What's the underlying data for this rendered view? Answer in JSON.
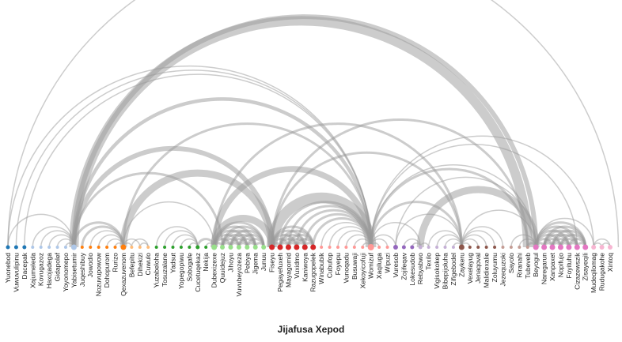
{
  "title": "Jijafusa Xepod",
  "colors": {
    "arc": "#999999",
    "label": "#222222",
    "groups": [
      "#1f77b4",
      "#aec7e8",
      "#ff7f0e",
      "#ffbb78",
      "#2ca02c",
      "#98df8a",
      "#d62728",
      "#ff9896",
      "#9467bd",
      "#c5b0d5",
      "#8c564b",
      "#c49c94",
      "#e377c2",
      "#f7b6d2"
    ]
  },
  "nodes": [
    {
      "label": "Yuonebod",
      "group": 0,
      "size": 2.5
    },
    {
      "label": "Vuwuvulipinu",
      "group": 0,
      "size": 2.5
    },
    {
      "label": "Dacepak",
      "group": 0,
      "size": 2.5
    },
    {
      "label": "Xajumeleda",
      "group": 1,
      "size": 2
    },
    {
      "label": "Kovugazoz",
      "group": 1,
      "size": 2
    },
    {
      "label": "Haxojadega",
      "group": 1,
      "size": 2
    },
    {
      "label": "Gidapolef",
      "group": 1,
      "size": 2
    },
    {
      "label": "Yoyonomepo",
      "group": 1,
      "size": 2
    },
    {
      "label": "Yabisetumir",
      "group": 1,
      "size": 3.5
    },
    {
      "label": "Juqeshibuy",
      "group": 2,
      "size": 2
    },
    {
      "label": "Jowodio",
      "group": 2,
      "size": 2
    },
    {
      "label": "Nozuvupowow",
      "group": 2,
      "size": 2
    },
    {
      "label": "Dohopurom",
      "group": 2,
      "size": 2
    },
    {
      "label": "Rurizo",
      "group": 2,
      "size": 2
    },
    {
      "label": "Qexazuvenom",
      "group": 2,
      "size": 3.5
    },
    {
      "label": "Befepitu",
      "group": 3,
      "size": 2
    },
    {
      "label": "Dihekizi",
      "group": 3,
      "size": 2
    },
    {
      "label": "Cuwulo",
      "group": 3,
      "size": 2
    },
    {
      "label": "Yuzabeloha",
      "group": 4,
      "size": 2
    },
    {
      "label": "Tosuzalane",
      "group": 4,
      "size": 2
    },
    {
      "label": "Yadsut",
      "group": 4,
      "size": 2
    },
    {
      "label": "Yopegopiwu",
      "group": 4,
      "size": 2
    },
    {
      "label": "Sobogafe",
      "group": 4,
      "size": 2
    },
    {
      "label": "Cucetuqekaz",
      "group": 4,
      "size": 2.5
    },
    {
      "label": "Nekija",
      "group": 4,
      "size": 2
    },
    {
      "label": "Dubexizexe",
      "group": 5,
      "size": 3.5
    },
    {
      "label": "Quuidejuz",
      "group": 5,
      "size": 3
    },
    {
      "label": "Jihoyu",
      "group": 5,
      "size": 3
    },
    {
      "label": "Vuvubeyozeza",
      "group": 5,
      "size": 3
    },
    {
      "label": "Pebiya",
      "group": 5,
      "size": 3
    },
    {
      "label": "Jigema",
      "group": 5,
      "size": 3
    },
    {
      "label": "Junuu",
      "group": 5,
      "size": 3
    },
    {
      "label": "Fiseyu",
      "group": 6,
      "size": 3.5
    },
    {
      "label": "Pegayefuxeh",
      "group": 6,
      "size": 3.5
    },
    {
      "label": "Mayagomid",
      "group": 6,
      "size": 3.5
    },
    {
      "label": "Vuxidmo",
      "group": 6,
      "size": 3.5
    },
    {
      "label": "Kaniwoya",
      "group": 6,
      "size": 3.5
    },
    {
      "label": "Razugopelek",
      "group": 6,
      "size": 3.5
    },
    {
      "label": "Winabubik",
      "group": 7,
      "size": 2
    },
    {
      "label": "Cubufop",
      "group": 7,
      "size": 2
    },
    {
      "label": "Foyepu",
      "group": 7,
      "size": 2
    },
    {
      "label": "Vunoqadu",
      "group": 7,
      "size": 2
    },
    {
      "label": "Busuwaji",
      "group": 7,
      "size": 2
    },
    {
      "label": "Xekoyicofuji",
      "group": 7,
      "size": 2
    },
    {
      "label": "Womizuf",
      "group": 7,
      "size": 4
    },
    {
      "label": "Xaqiluga",
      "group": 7,
      "size": 2
    },
    {
      "label": "Wipuzi",
      "group": 7,
      "size": 2
    },
    {
      "label": "Vuresob",
      "group": 8,
      "size": 3
    },
    {
      "label": "Zojifeqav",
      "group": 8,
      "size": 2.5
    },
    {
      "label": "Lokesudob",
      "group": 8,
      "size": 2.5
    },
    {
      "label": "Rebyabwo",
      "group": 9,
      "size": 2.5
    },
    {
      "label": "Texilo",
      "group": 9,
      "size": 2
    },
    {
      "label": "Vigisokokep",
      "group": 9,
      "size": 2
    },
    {
      "label": "Bibepijoluha",
      "group": 9,
      "size": 2
    },
    {
      "label": "Zifigebodel",
      "group": 9,
      "size": 2
    },
    {
      "label": "Zaykeru",
      "group": 10,
      "size": 3.5
    },
    {
      "label": "Vexelayug",
      "group": 10,
      "size": 2
    },
    {
      "label": "Jenaqoval",
      "group": 10,
      "size": 2
    },
    {
      "label": "Malidiexalie",
      "group": 10,
      "size": 2
    },
    {
      "label": "Zoluyumu",
      "group": 10,
      "size": 2
    },
    {
      "label": "Jezequzoki",
      "group": 11,
      "size": 2
    },
    {
      "label": "Sayolo",
      "group": 11,
      "size": 2
    },
    {
      "label": "Riranahi",
      "group": 11,
      "size": 2
    },
    {
      "label": "Tubeveb",
      "group": 11,
      "size": 2
    },
    {
      "label": "Beyogul",
      "group": 12,
      "size": 3.5
    },
    {
      "label": "Naregarun",
      "group": 12,
      "size": 3.5
    },
    {
      "label": "Xanpaxet",
      "group": 12,
      "size": 3.5
    },
    {
      "label": "Nopifujo",
      "group": 12,
      "size": 3.5
    },
    {
      "label": "Foyituhu",
      "group": 12,
      "size": 3.5
    },
    {
      "label": "Cizazewszik",
      "group": 12,
      "size": 3.5
    },
    {
      "label": "Zisayeqili",
      "group": 12,
      "size": 3.5
    },
    {
      "label": "Mudeqilomag",
      "group": 13,
      "size": 3
    },
    {
      "label": "Rudugakohe",
      "group": 13,
      "size": 3
    },
    {
      "label": "Xintoq",
      "group": 13,
      "size": 3
    }
  ],
  "links": [
    {
      "source": 0,
      "target": 74,
      "value": 1
    },
    {
      "source": 0,
      "target": 44,
      "value": 1
    },
    {
      "source": 1,
      "target": 44,
      "value": 1
    },
    {
      "source": 2,
      "target": 44,
      "value": 1
    },
    {
      "source": 0,
      "target": 8,
      "value": 1
    },
    {
      "source": 3,
      "target": 8,
      "value": 1
    },
    {
      "source": 4,
      "target": 8,
      "value": 1
    },
    {
      "source": 5,
      "target": 8,
      "value": 1
    },
    {
      "source": 6,
      "target": 8,
      "value": 1
    },
    {
      "source": 7,
      "target": 8,
      "value": 1
    },
    {
      "source": 8,
      "target": 44,
      "value": 3
    },
    {
      "source": 8,
      "target": 32,
      "value": 4
    },
    {
      "source": 8,
      "target": 26,
      "value": 2
    },
    {
      "source": 8,
      "target": 14,
      "value": 2
    },
    {
      "source": 8,
      "target": 63,
      "value": 8
    },
    {
      "source": 8,
      "target": 64,
      "value": 4
    },
    {
      "source": 9,
      "target": 14,
      "value": 2
    },
    {
      "source": 10,
      "target": 14,
      "value": 1
    },
    {
      "source": 11,
      "target": 14,
      "value": 1
    },
    {
      "source": 12,
      "target": 14,
      "value": 1
    },
    {
      "source": 13,
      "target": 14,
      "value": 1
    },
    {
      "source": 14,
      "target": 44,
      "value": 2
    },
    {
      "source": 14,
      "target": 32,
      "value": 6
    },
    {
      "source": 14,
      "target": 25,
      "value": 1
    },
    {
      "source": 15,
      "target": 14,
      "value": 1
    },
    {
      "source": 16,
      "target": 14,
      "value": 1
    },
    {
      "source": 15,
      "target": 17,
      "value": 1
    },
    {
      "source": 16,
      "target": 17,
      "value": 1
    },
    {
      "source": 18,
      "target": 23,
      "value": 1
    },
    {
      "source": 19,
      "target": 23,
      "value": 1
    },
    {
      "source": 20,
      "target": 23,
      "value": 1
    },
    {
      "source": 21,
      "target": 23,
      "value": 1
    },
    {
      "source": 22,
      "target": 23,
      "value": 1
    },
    {
      "source": 23,
      "target": 25,
      "value": 2
    },
    {
      "source": 24,
      "target": 25,
      "value": 1
    },
    {
      "source": 25,
      "target": 44,
      "value": 5
    },
    {
      "source": 25,
      "target": 32,
      "value": 6
    },
    {
      "source": 25,
      "target": 55,
      "value": 2
    },
    {
      "source": 25,
      "target": 26,
      "value": 2
    },
    {
      "source": 25,
      "target": 27,
      "value": 2
    },
    {
      "source": 25,
      "target": 28,
      "value": 2
    },
    {
      "source": 25,
      "target": 29,
      "value": 2
    },
    {
      "source": 25,
      "target": 30,
      "value": 2
    },
    {
      "source": 25,
      "target": 31,
      "value": 2
    },
    {
      "source": 26,
      "target": 27,
      "value": 2
    },
    {
      "source": 26,
      "target": 28,
      "value": 2
    },
    {
      "source": 26,
      "target": 29,
      "value": 2
    },
    {
      "source": 26,
      "target": 30,
      "value": 2
    },
    {
      "source": 26,
      "target": 31,
      "value": 2
    },
    {
      "source": 27,
      "target": 28,
      "value": 2
    },
    {
      "source": 27,
      "target": 29,
      "value": 2
    },
    {
      "source": 27,
      "target": 30,
      "value": 2
    },
    {
      "source": 27,
      "target": 31,
      "value": 2
    },
    {
      "source": 28,
      "target": 29,
      "value": 2
    },
    {
      "source": 28,
      "target": 30,
      "value": 2
    },
    {
      "source": 28,
      "target": 31,
      "value": 2
    },
    {
      "source": 29,
      "target": 30,
      "value": 2
    },
    {
      "source": 29,
      "target": 31,
      "value": 2
    },
    {
      "source": 30,
      "target": 31,
      "value": 2
    },
    {
      "source": 32,
      "target": 33,
      "value": 2
    },
    {
      "source": 32,
      "target": 34,
      "value": 2
    },
    {
      "source": 32,
      "target": 35,
      "value": 2
    },
    {
      "source": 32,
      "target": 36,
      "value": 2
    },
    {
      "source": 32,
      "target": 37,
      "value": 2
    },
    {
      "source": 33,
      "target": 34,
      "value": 2
    },
    {
      "source": 33,
      "target": 35,
      "value": 2
    },
    {
      "source": 33,
      "target": 36,
      "value": 2
    },
    {
      "source": 33,
      "target": 37,
      "value": 2
    },
    {
      "source": 34,
      "target": 35,
      "value": 2
    },
    {
      "source": 34,
      "target": 36,
      "value": 2
    },
    {
      "source": 34,
      "target": 37,
      "value": 2
    },
    {
      "source": 35,
      "target": 36,
      "value": 2
    },
    {
      "source": 35,
      "target": 37,
      "value": 2
    },
    {
      "source": 36,
      "target": 37,
      "value": 2
    },
    {
      "source": 32,
      "target": 44,
      "value": 9
    },
    {
      "source": 32,
      "target": 63,
      "value": 2
    },
    {
      "source": 32,
      "target": 55,
      "value": 2
    },
    {
      "source": 33,
      "target": 44,
      "value": 2
    },
    {
      "source": 34,
      "target": 44,
      "value": 2
    },
    {
      "source": 35,
      "target": 44,
      "value": 2
    },
    {
      "source": 36,
      "target": 44,
      "value": 2
    },
    {
      "source": 37,
      "target": 44,
      "value": 2
    },
    {
      "source": 38,
      "target": 44,
      "value": 1
    },
    {
      "source": 39,
      "target": 44,
      "value": 1
    },
    {
      "source": 40,
      "target": 44,
      "value": 1
    },
    {
      "source": 41,
      "target": 44,
      "value": 1
    },
    {
      "source": 42,
      "target": 44,
      "value": 1
    },
    {
      "source": 43,
      "target": 44,
      "value": 1
    },
    {
      "source": 44,
      "target": 45,
      "value": 1
    },
    {
      "source": 44,
      "target": 46,
      "value": 1
    },
    {
      "source": 44,
      "target": 47,
      "value": 1
    },
    {
      "source": 44,
      "target": 50,
      "value": 1
    },
    {
      "source": 44,
      "target": 55,
      "value": 2
    },
    {
      "source": 44,
      "target": 63,
      "value": 2
    },
    {
      "source": 44,
      "target": 64,
      "value": 1
    },
    {
      "source": 44,
      "target": 69,
      "value": 1
    },
    {
      "source": 44,
      "target": 71,
      "value": 1
    },
    {
      "source": 47,
      "target": 55,
      "value": 1
    },
    {
      "source": 47,
      "target": 64,
      "value": 1
    },
    {
      "source": 48,
      "target": 50,
      "value": 1
    },
    {
      "source": 49,
      "target": 50,
      "value": 1
    },
    {
      "source": 50,
      "target": 51,
      "value": 1
    },
    {
      "source": 50,
      "target": 64,
      "value": 6
    },
    {
      "source": 51,
      "target": 55,
      "value": 1
    },
    {
      "source": 52,
      "target": 55,
      "value": 1
    },
    {
      "source": 53,
      "target": 55,
      "value": 1
    },
    {
      "source": 54,
      "target": 55,
      "value": 1
    },
    {
      "source": 55,
      "target": 64,
      "value": 1
    },
    {
      "source": 55,
      "target": 56,
      "value": 1
    },
    {
      "source": 55,
      "target": 57,
      "value": 1
    },
    {
      "source": 55,
      "target": 58,
      "value": 1
    },
    {
      "source": 55,
      "target": 59,
      "value": 1
    },
    {
      "source": 55,
      "target": 60,
      "value": 1
    },
    {
      "source": 61,
      "target": 64,
      "value": 1
    },
    {
      "source": 62,
      "target": 64,
      "value": 1
    },
    {
      "source": 63,
      "target": 64,
      "value": 2
    },
    {
      "source": 64,
      "target": 65,
      "value": 2
    },
    {
      "source": 64,
      "target": 66,
      "value": 2
    },
    {
      "source": 64,
      "target": 67,
      "value": 2
    },
    {
      "source": 64,
      "target": 68,
      "value": 2
    },
    {
      "source": 64,
      "target": 69,
      "value": 2
    },
    {
      "source": 64,
      "target": 70,
      "value": 2
    },
    {
      "source": 64,
      "target": 71,
      "value": 1
    },
    {
      "source": 65,
      "target": 66,
      "value": 2
    },
    {
      "source": 65,
      "target": 67,
      "value": 2
    },
    {
      "source": 65,
      "target": 68,
      "value": 2
    },
    {
      "source": 65,
      "target": 69,
      "value": 2
    },
    {
      "source": 65,
      "target": 70,
      "value": 2
    },
    {
      "source": 66,
      "target": 67,
      "value": 2
    },
    {
      "source": 66,
      "target": 68,
      "value": 2
    },
    {
      "source": 66,
      "target": 69,
      "value": 2
    },
    {
      "source": 66,
      "target": 70,
      "value": 2
    },
    {
      "source": 67,
      "target": 68,
      "value": 2
    },
    {
      "source": 67,
      "target": 69,
      "value": 2
    },
    {
      "source": 67,
      "target": 70,
      "value": 2
    },
    {
      "source": 68,
      "target": 69,
      "value": 2
    },
    {
      "source": 68,
      "target": 70,
      "value": 2
    },
    {
      "source": 69,
      "target": 70,
      "value": 2
    },
    {
      "source": 71,
      "target": 72,
      "value": 1
    },
    {
      "source": 71,
      "target": 73,
      "value": 1
    },
    {
      "source": 72,
      "target": 73,
      "value": 1
    }
  ]
}
